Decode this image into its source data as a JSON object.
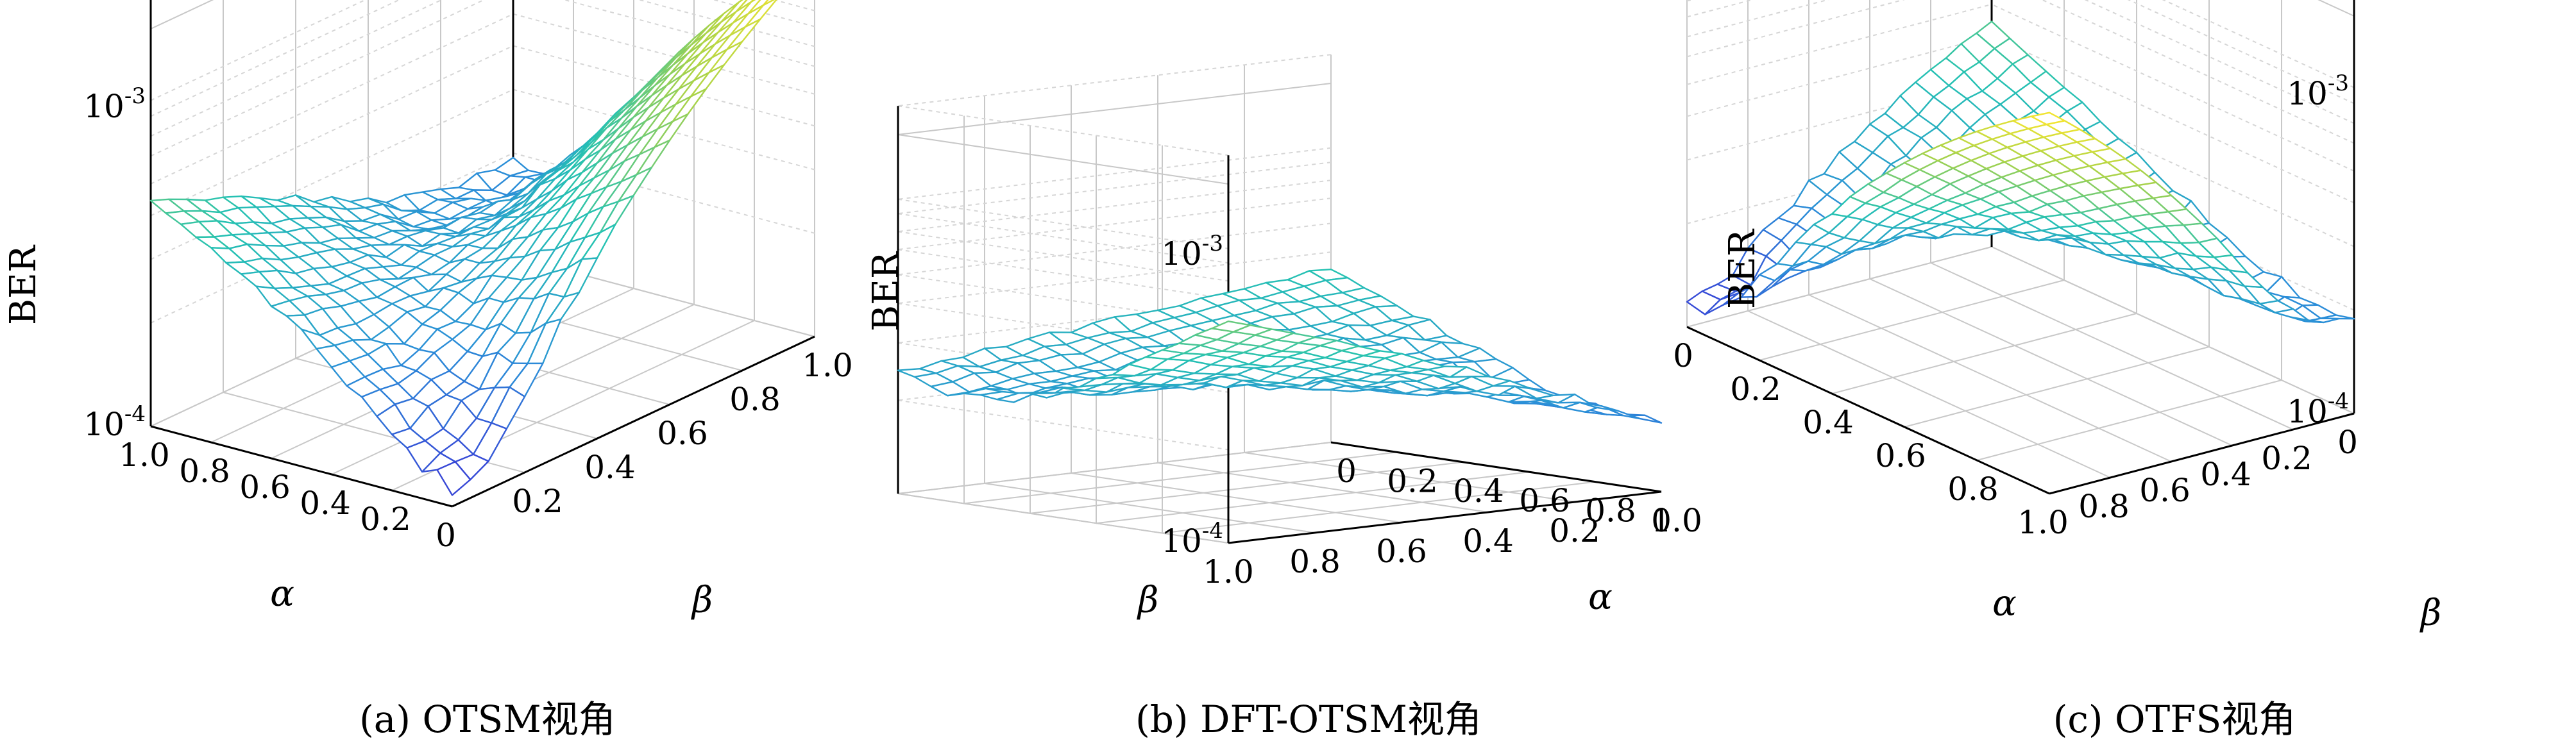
{
  "figure": {
    "panels": [
      {
        "caption": "(a) OTSM视角",
        "view": "otsm"
      },
      {
        "caption": "(b) DFT-OTSM视角",
        "view": "dft"
      },
      {
        "caption": "(c) OTFS视角",
        "view": "otfs"
      }
    ]
  },
  "chart_data": [
    {
      "type": "surface",
      "title": "",
      "caption": "(a) OTSM视角",
      "zlabel": "BER",
      "xlabel": "α",
      "ylabel": "β",
      "z_scale": "log",
      "zlim": [
        0.0001,
        0.0035
      ],
      "z_ticks": [
        "10^-4",
        "10^-3"
      ],
      "x_ticks": [
        "1.0",
        "0.8",
        "0.6",
        "0.4",
        "0.2",
        "0"
      ],
      "y_ticks": [
        "0.2",
        "0.4",
        "0.6",
        "0.8",
        "1.0"
      ],
      "grid": true,
      "colormap": [
        "#3b2fd6",
        "#2b8fd8",
        "#25c2b2",
        "#a6d24a",
        "#f9e62d"
      ],
      "alpha": [
        0,
        0.1,
        0.2,
        0.3,
        0.4,
        0.5,
        0.6,
        0.7,
        0.8,
        0.9,
        1.0
      ],
      "beta": [
        0,
        0.1,
        0.2,
        0.3,
        0.4,
        0.5,
        0.6,
        0.7,
        0.8,
        0.9,
        1.0
      ],
      "ber_model": {
        "peak_alpha0_beta1": 0.003,
        "peak_alpha1_beta0": 0.00075,
        "minimum": 0.00012
      }
    },
    {
      "type": "surface",
      "title": "",
      "caption": "(b) DFT-OTSM视角",
      "zlabel": "BER",
      "xlabel": "β",
      "ylabel": "α",
      "z_scale": "log",
      "z_ticks": [
        "10^-4",
        "10^-3"
      ],
      "x_ticks": [
        "1.0",
        "0.8",
        "0.6",
        "0.4",
        "0.2",
        "0"
      ],
      "y_ticks": [
        "1.0",
        "0.8",
        "0.6",
        "0.4",
        "0.2",
        "0"
      ],
      "grid": true
    },
    {
      "type": "surface",
      "title": "",
      "caption": "(c) OTFS视角",
      "zlabel": "BER",
      "xlabel": "α",
      "ylabel": "β",
      "z_scale": "log",
      "z_ticks": [
        "10^-4",
        "10^-3"
      ],
      "x_ticks": [
        "0",
        "0.2",
        "0.4",
        "0.6",
        "0.8"
      ],
      "y_ticks": [
        "1.0",
        "0.8",
        "0.6",
        "0.4",
        "0.2",
        "0"
      ],
      "grid": true
    }
  ]
}
